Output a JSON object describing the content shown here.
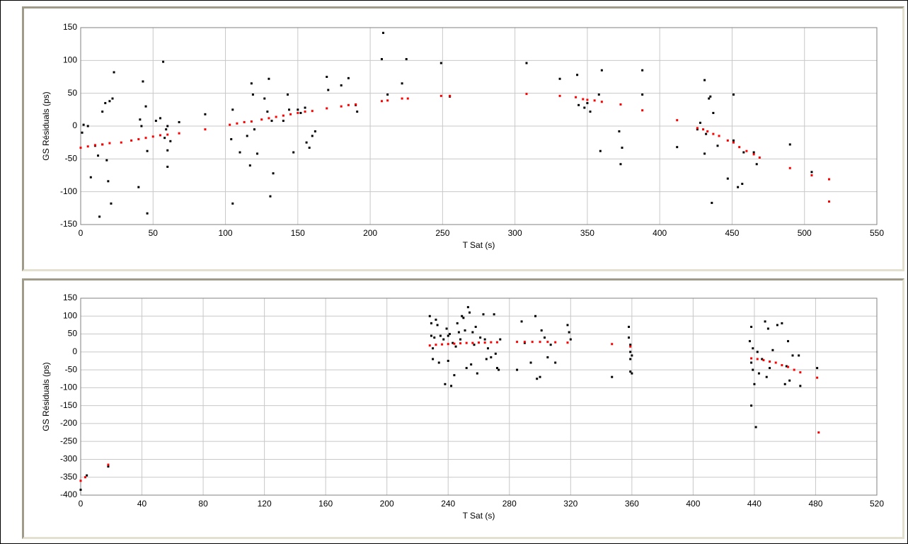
{
  "chart_data": [
    {
      "type": "scatter",
      "xlabel": "T Sat (s)",
      "ylabel": "GS Résiduals (ps)",
      "xlim": [
        0,
        550
      ],
      "xticks": [
        0,
        50,
        100,
        150,
        200,
        250,
        300,
        350,
        400,
        450,
        500,
        550
      ],
      "ylim": [
        -150,
        150
      ],
      "yticks": [
        -150,
        -100,
        -50,
        0,
        50,
        100,
        150
      ],
      "grid": true,
      "series": [
        {
          "color": "#000000",
          "x": [
            1,
            2,
            5,
            7,
            10,
            12,
            13,
            15,
            15,
            17,
            18,
            19,
            20,
            21,
            22,
            23,
            40,
            41,
            42,
            43,
            45,
            46,
            46,
            52,
            55,
            57,
            58,
            59,
            60,
            60,
            60,
            62,
            68,
            86,
            104,
            105,
            105,
            110,
            115,
            117,
            118,
            119,
            120,
            122,
            127,
            129,
            130,
            131,
            132,
            133,
            140,
            143,
            144,
            147,
            150,
            152,
            155,
            156,
            158,
            160,
            162,
            170,
            171,
            180,
            185,
            190,
            191,
            208,
            209,
            212,
            222,
            225,
            249,
            255,
            308,
            331,
            343,
            344,
            348,
            350,
            352,
            358,
            359,
            360,
            372,
            373,
            374,
            388,
            388,
            412,
            426,
            428,
            431,
            431,
            432,
            434,
            435,
            436,
            437,
            440,
            447,
            451,
            451,
            454,
            457,
            458,
            465,
            467,
            490,
            505
          ],
          "values": [
            -10,
            2,
            0,
            -78,
            -30,
            -45,
            -138,
            22,
            -28,
            35,
            -52,
            -84,
            38,
            -118,
            42,
            82,
            -93,
            10,
            0,
            68,
            30,
            -38,
            -133,
            8,
            12,
            98,
            -18,
            -5,
            -37,
            -62,
            0,
            -23,
            6,
            18,
            -20,
            25,
            -118,
            -40,
            -15,
            -60,
            65,
            48,
            -5,
            -42,
            42,
            22,
            72,
            -107,
            8,
            -72,
            8,
            48,
            25,
            -40,
            25,
            20,
            28,
            -25,
            -33,
            -15,
            -8,
            75,
            55,
            62,
            73,
            32,
            22,
            102,
            142,
            48,
            65,
            102,
            96,
            45,
            96,
            72,
            78,
            32,
            28,
            35,
            22,
            48,
            -38,
            85,
            -8,
            -58,
            -33,
            85,
            48,
            -32,
            -5,
            5,
            -42,
            70,
            -12,
            42,
            45,
            -117,
            20,
            -30,
            -80,
            48,
            -22,
            -93,
            -88,
            -40,
            -40,
            -58,
            -28,
            -70
          ]
        },
        {
          "color": "#ff0000",
          "x": [
            0,
            5,
            10,
            15,
            20,
            28,
            35,
            40,
            45,
            50,
            55,
            60,
            68,
            86,
            103,
            108,
            113,
            118,
            125,
            130,
            135,
            140,
            145,
            150,
            155,
            160,
            170,
            180,
            185,
            190,
            208,
            212,
            222,
            226,
            249,
            255,
            308,
            331,
            342,
            347,
            350,
            355,
            360,
            373,
            388,
            412,
            426,
            430,
            433,
            437,
            441,
            447,
            451,
            455,
            460,
            465,
            469,
            490,
            505,
            517,
            517
          ],
          "values": [
            -33,
            -31,
            -29,
            -28,
            -26,
            -25,
            -22,
            -20,
            -18,
            -16,
            -14,
            -13,
            -11,
            -5,
            2,
            4,
            6,
            7,
            10,
            12,
            14,
            16,
            18,
            20,
            22,
            23,
            27,
            30,
            32,
            33,
            38,
            39,
            42,
            42,
            46,
            46,
            49,
            46,
            44,
            41,
            40,
            39,
            37,
            33,
            24,
            9,
            -3,
            -5,
            -8,
            -12,
            -15,
            -22,
            -25,
            -32,
            -38,
            -43,
            -48,
            -64,
            -75,
            -81,
            -115
          ]
        }
      ]
    },
    {
      "type": "scatter",
      "xlabel": "T Sat (s)",
      "ylabel": "GS Résiduals (ps)",
      "xlim": [
        0,
        520
      ],
      "xticks": [
        0,
        40,
        80,
        120,
        160,
        200,
        240,
        280,
        320,
        360,
        400,
        440,
        480,
        520
      ],
      "ylim": [
        -400,
        150
      ],
      "yticks": [
        -400,
        -350,
        -300,
        -250,
        -200,
        -150,
        -100,
        -50,
        0,
        50,
        100,
        150
      ],
      "grid": true,
      "series": [
        {
          "color": "#000000",
          "x": [
            0,
            4,
            18,
            228,
            229,
            229,
            230,
            230,
            231,
            232,
            233,
            234,
            235,
            237,
            238,
            239,
            240,
            240,
            241,
            242,
            243,
            244,
            245,
            246,
            247,
            248,
            249,
            250,
            251,
            252,
            253,
            254,
            255,
            256,
            257,
            258,
            259,
            261,
            263,
            264,
            265,
            266,
            268,
            270,
            271,
            272,
            273,
            274,
            285,
            288,
            290,
            294,
            297,
            298,
            300,
            301,
            303,
            305,
            307,
            310,
            318,
            319,
            320,
            347,
            358,
            358,
            359,
            359,
            359,
            359,
            360,
            360,
            437,
            438,
            438,
            438,
            439,
            439,
            440,
            441,
            442,
            443,
            445,
            447,
            448,
            449,
            450,
            452,
            455,
            458,
            460,
            461,
            462,
            463,
            465,
            469,
            470,
            481
          ],
          "values": [
            -385,
            -345,
            -320,
            100,
            80,
            45,
            -20,
            10,
            40,
            90,
            75,
            -30,
            45,
            35,
            -90,
            65,
            -25,
            45,
            50,
            -95,
            25,
            -65,
            15,
            80,
            55,
            35,
            100,
            95,
            60,
            -45,
            125,
            110,
            -35,
            55,
            20,
            70,
            -60,
            40,
            105,
            35,
            -20,
            10,
            -15,
            105,
            -5,
            -45,
            -50,
            35,
            -50,
            85,
            25,
            -30,
            100,
            -75,
            -70,
            60,
            40,
            -15,
            20,
            -30,
            75,
            55,
            35,
            -70,
            70,
            40,
            20,
            0,
            -20,
            -55,
            -60,
            -10,
            30,
            70,
            -30,
            -150,
            -50,
            10,
            -90,
            -210,
            0,
            -60,
            -20,
            85,
            -70,
            65,
            -45,
            5,
            75,
            80,
            -90,
            -40,
            30,
            -80,
            -10,
            -10,
            -95,
            -45
          ]
        },
        {
          "color": "#ff0000",
          "x": [
            0,
            3,
            18,
            228,
            232,
            236,
            240,
            244,
            248,
            252,
            256,
            260,
            264,
            268,
            272,
            285,
            290,
            295,
            300,
            305,
            310,
            318,
            347,
            359,
            438,
            442,
            446,
            450,
            454,
            458,
            462,
            466,
            470,
            481,
            482
          ],
          "values": [
            -360,
            -350,
            -315,
            18,
            20,
            21,
            22,
            23,
            24,
            25,
            25,
            26,
            26,
            27,
            27,
            28,
            28,
            28,
            28,
            28,
            27,
            26,
            22,
            15,
            -18,
            -20,
            -23,
            -27,
            -30,
            -37,
            -42,
            -50,
            -57,
            -72,
            -225
          ]
        }
      ]
    }
  ]
}
